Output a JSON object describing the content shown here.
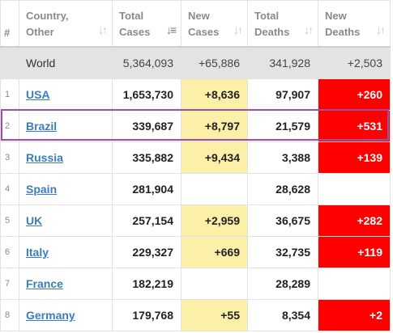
{
  "headers": {
    "num": "#",
    "country": "Country,\nOther",
    "total_cases": "Total\nCases",
    "new_cases": "New\nCases",
    "total_deaths": "Total\nDeaths",
    "new_deaths": "New\nDeaths"
  },
  "world": {
    "country": "World",
    "total_cases": "5,364,093",
    "new_cases": "+65,886",
    "total_deaths": "341,928",
    "new_deaths": "+2,503"
  },
  "rows": [
    {
      "num": "1",
      "country": "USA",
      "total_cases": "1,653,730",
      "new_cases": "+8,636",
      "total_deaths": "97,907",
      "new_deaths": "+260"
    },
    {
      "num": "2",
      "country": "Brazil",
      "total_cases": "339,687",
      "new_cases": "+8,797",
      "total_deaths": "21,579",
      "new_deaths": "+531"
    },
    {
      "num": "3",
      "country": "Russia",
      "total_cases": "335,882",
      "new_cases": "+9,434",
      "total_deaths": "3,388",
      "new_deaths": "+139"
    },
    {
      "num": "4",
      "country": "Spain",
      "total_cases": "281,904",
      "new_cases": "",
      "total_deaths": "28,628",
      "new_deaths": ""
    },
    {
      "num": "5",
      "country": "UK",
      "total_cases": "257,154",
      "new_cases": "+2,959",
      "total_deaths": "36,675",
      "new_deaths": "+282"
    },
    {
      "num": "6",
      "country": "Italy",
      "total_cases": "229,327",
      "new_cases": "+669",
      "total_deaths": "32,735",
      "new_deaths": "+119"
    },
    {
      "num": "7",
      "country": "France",
      "total_cases": "182,219",
      "new_cases": "",
      "total_deaths": "28,289",
      "new_deaths": ""
    },
    {
      "num": "8",
      "country": "Germany",
      "total_cases": "179,768",
      "new_cases": "+55",
      "total_deaths": "8,354",
      "new_deaths": "+2"
    }
  ],
  "colors": {
    "new_cases_highlight": "#fcefa8",
    "new_deaths_highlight": "#ff0000",
    "selected_row_border": "#9b4fa5",
    "link": "#3a7dbf"
  },
  "icons": {
    "sort": "sort-arrows-icon",
    "sort_active": "sort-descending-icon"
  }
}
